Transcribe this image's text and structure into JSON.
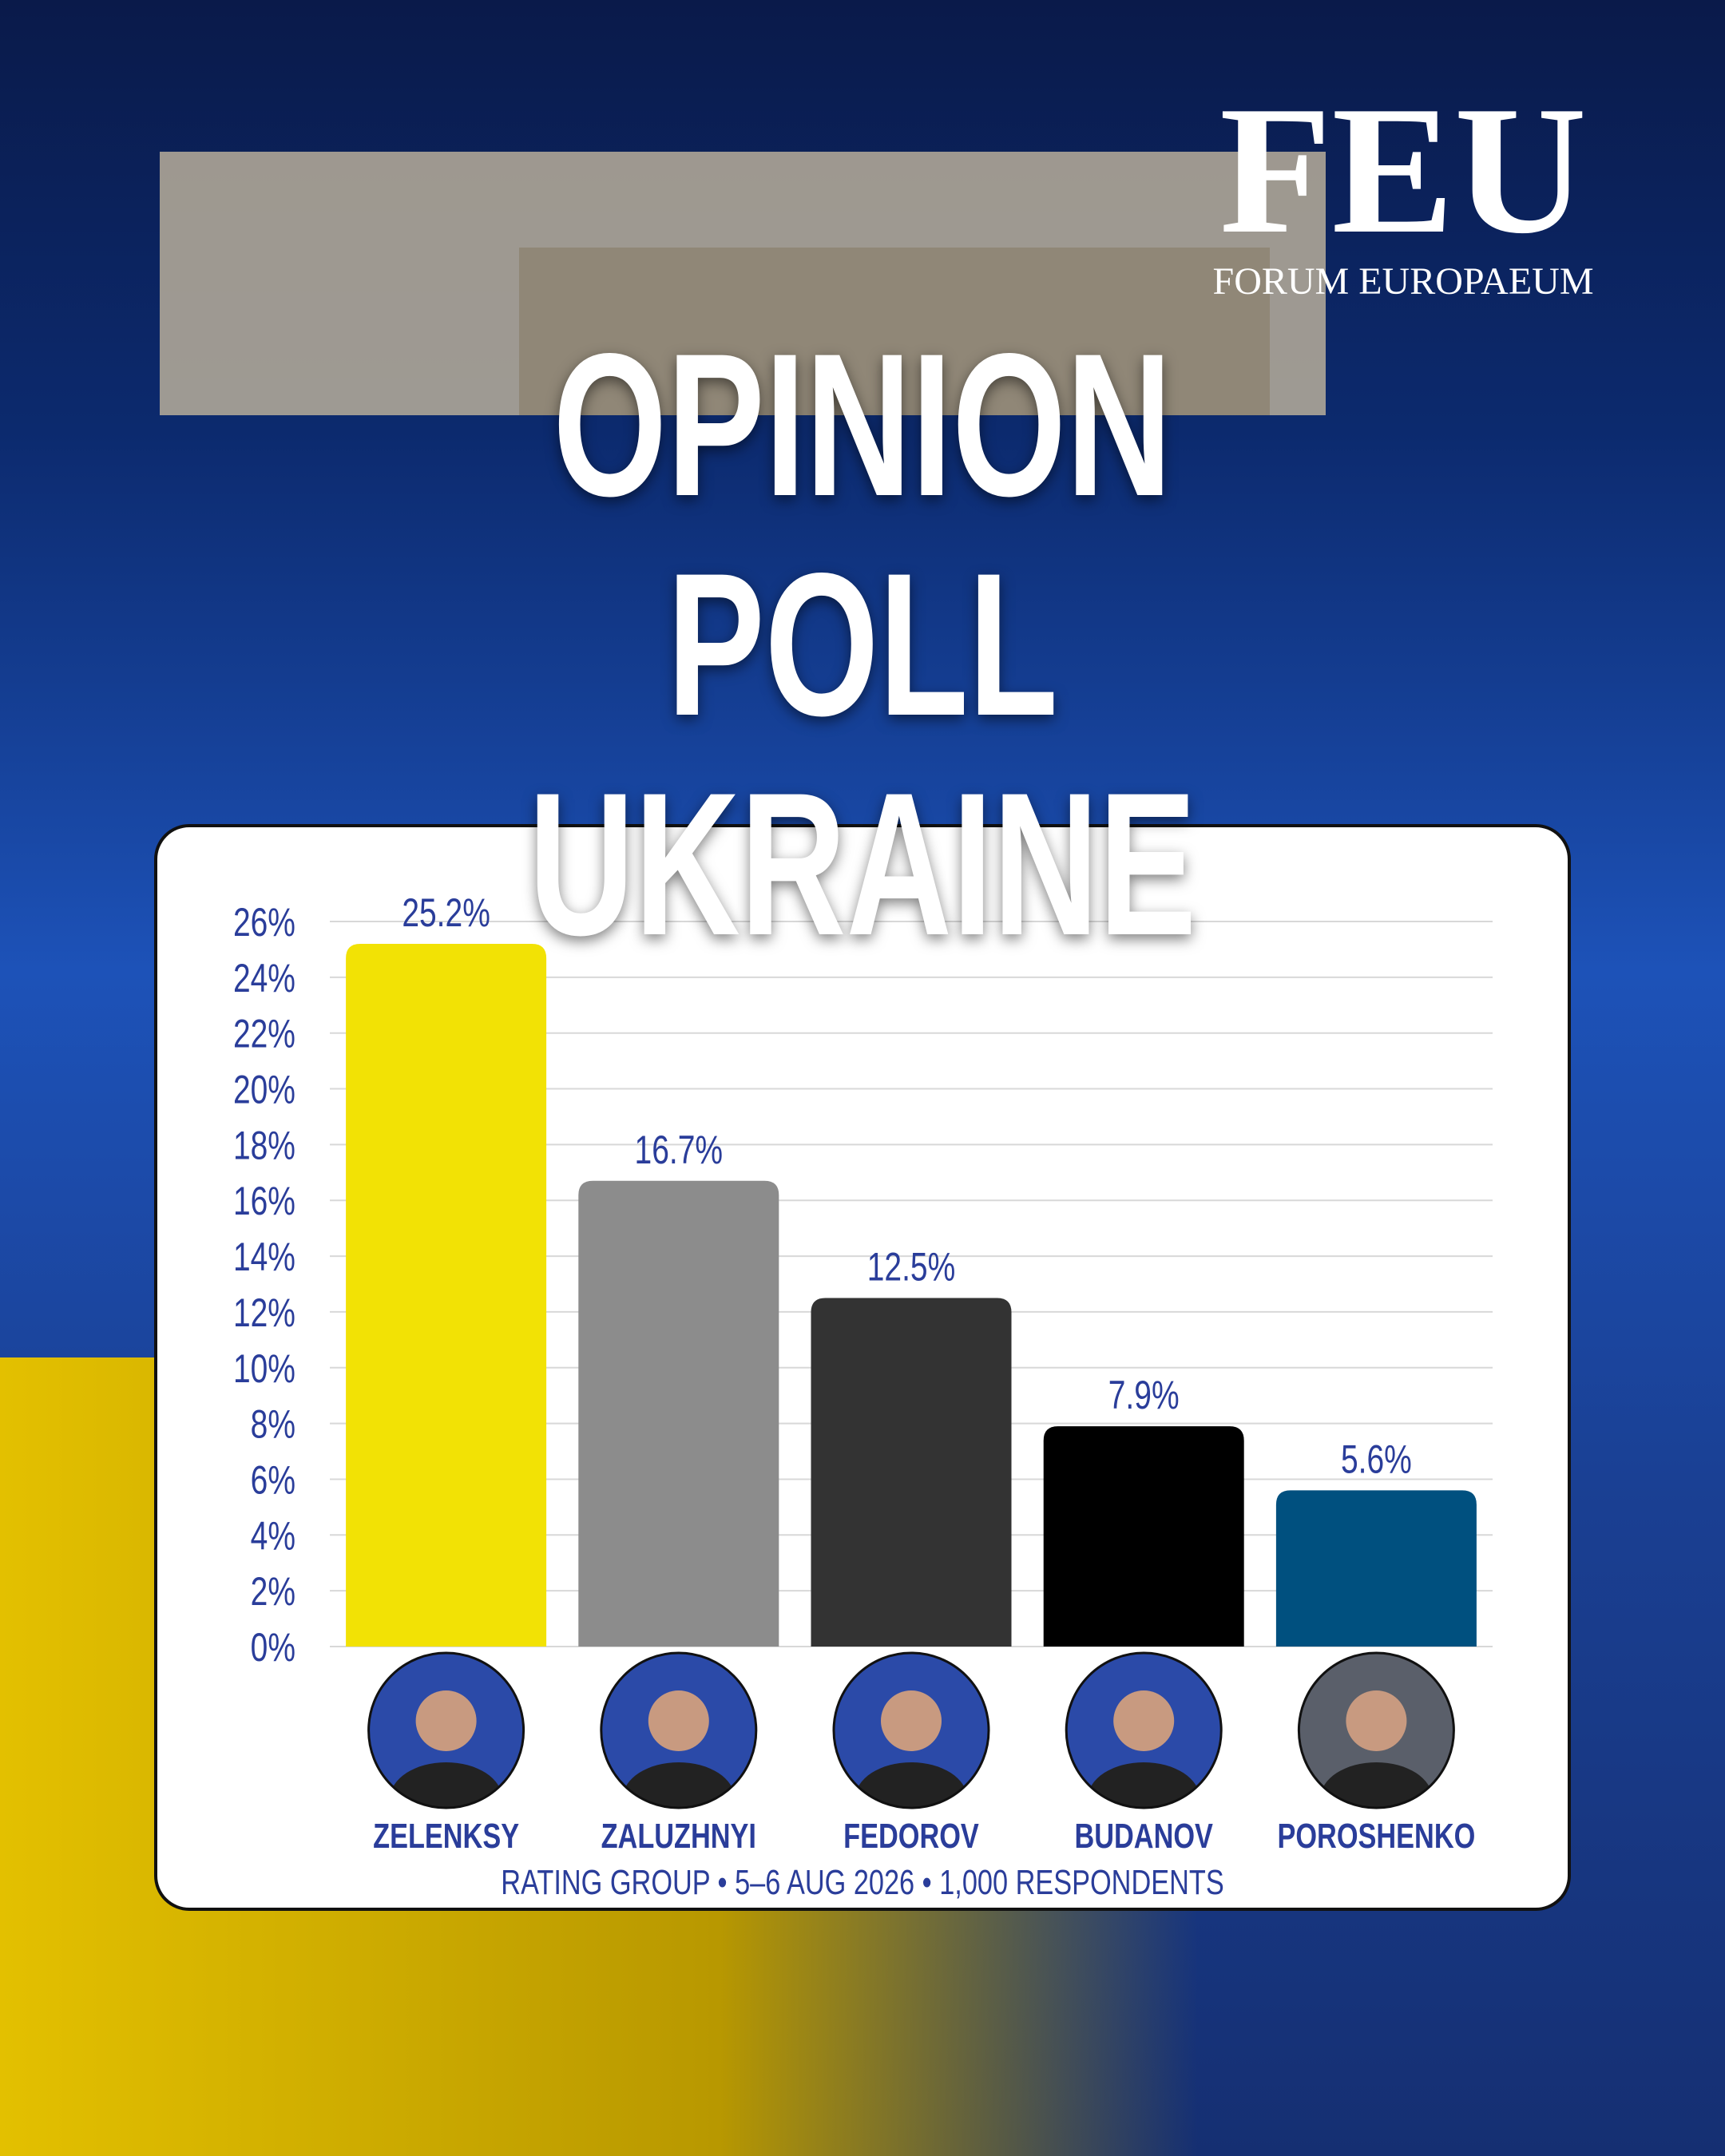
{
  "header": {
    "logo": "FEU",
    "name": "FORUM EUROPAEUM"
  },
  "chart_data": {
    "type": "bar",
    "title": "OPINION POLL UKRAINE",
    "categories": [
      "ZELENKSY",
      "ZALUZHNYI",
      "FEDOROV",
      "BUDANOV",
      "POROSHENKO"
    ],
    "values": [
      25.2,
      16.7,
      12.5,
      7.9,
      5.6
    ],
    "value_labels": [
      "25.2%",
      "16.7%",
      "12.5%",
      "7.9%",
      "5.6%"
    ],
    "colors": [
      "#f2e205",
      "#8c8c8c",
      "#333333",
      "#000000",
      "#00507f"
    ],
    "ylim": [
      0,
      26
    ],
    "yticks": [
      {
        "value": 0,
        "label": "0%"
      },
      {
        "value": 2,
        "label": "2%"
      },
      {
        "value": 4,
        "label": "4%"
      },
      {
        "value": 6,
        "label": "6%"
      },
      {
        "value": 8,
        "label": "8%"
      },
      {
        "value": 10,
        "label": "10%"
      },
      {
        "value": 12,
        "label": "12%"
      },
      {
        "value": 14,
        "label": "14%"
      },
      {
        "value": 16,
        "label": "16%"
      },
      {
        "value": 18,
        "label": "18%"
      },
      {
        "value": 20,
        "label": "20%"
      },
      {
        "value": 22,
        "label": "22%"
      },
      {
        "value": 24,
        "label": "24%"
      },
      {
        "value": 26,
        "label": "26%"
      }
    ],
    "grid": true,
    "source": "RATING GROUP • 5–6 AUG 2026 • 1,000 RESPONDENTS"
  }
}
